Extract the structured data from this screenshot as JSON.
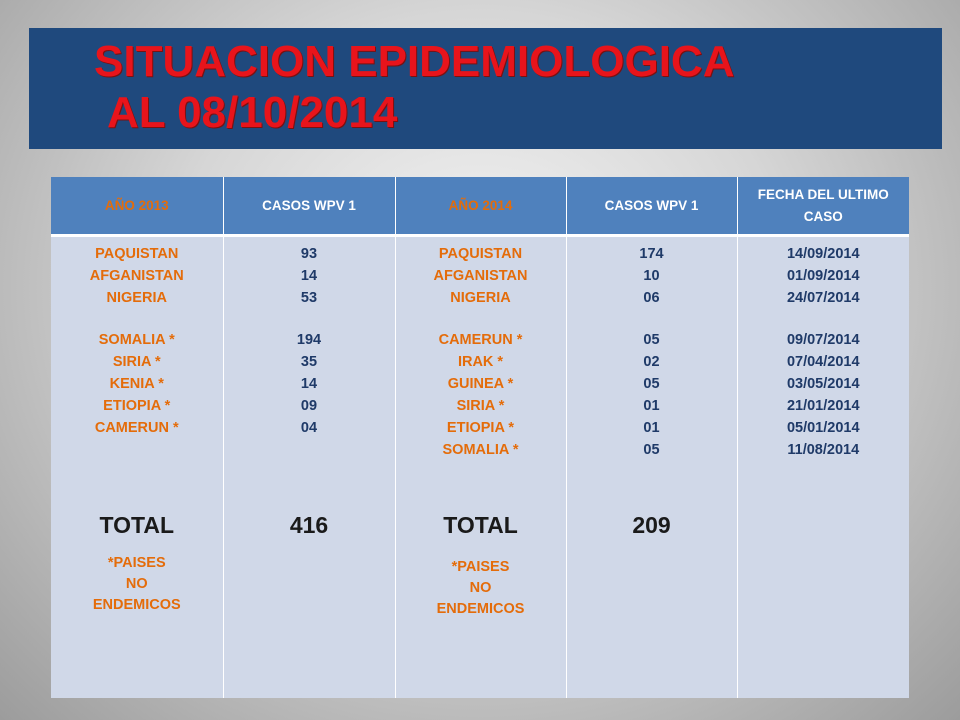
{
  "title": {
    "line1": "SITUACION EPIDEMIOLOGICA",
    "line2": "AL 08/10/2014"
  },
  "table": {
    "headers": [
      "AÑO 2013",
      "CASOS WPV 1",
      "AÑO 2014",
      "CASOS WPV 1",
      "FECHA  DEL ULTIMO CASO"
    ],
    "col1": {
      "endemic": [
        "PAQUISTAN",
        "AFGANISTAN",
        "NIGERIA"
      ],
      "non_endemic": [
        "SOMALIA *",
        "SIRIA *",
        "KENIA *",
        "ETIOPIA *",
        "CAMERUN *"
      ],
      "total_label": "TOTAL",
      "note": [
        "*PAISES",
        "NO",
        "ENDEMICOS"
      ]
    },
    "col2": {
      "endemic": [
        "93",
        "14",
        "53"
      ],
      "non_endemic": [
        "194",
        "35",
        "14",
        "09",
        "04"
      ],
      "total": "416"
    },
    "col3": {
      "endemic": [
        "PAQUISTAN",
        "AFGANISTAN",
        "NIGERIA"
      ],
      "non_endemic": [
        "CAMERUN *",
        "IRAK *",
        "GUINEA *",
        "SIRIA *",
        "ETIOPIA *",
        "SOMALIA *"
      ],
      "total_label": "TOTAL",
      "note": [
        "*PAISES",
        "NO",
        "ENDEMICOS"
      ]
    },
    "col4": {
      "endemic": [
        "174",
        "10",
        "06"
      ],
      "non_endemic": [
        "05",
        "02",
        "05",
        "01",
        "01",
        "05"
      ],
      "total": "209"
    },
    "col5": {
      "endemic": [
        "14/09/2014",
        "01/09/2014",
        "24/07/2014"
      ],
      "non_endemic": [
        "09/07/2014",
        "07/04/2014",
        "03/05/2014",
        "21/01/2014",
        "05/01/2014",
        "11/08/2014"
      ]
    }
  },
  "colors": {
    "title_bg": "#1f497d",
    "title_text": "#e8141b",
    "header_bg": "#4f81bd",
    "body_bg": "#d0d8e8",
    "accent_orange": "#e46c0a",
    "date_navy": "#1f3a68"
  }
}
